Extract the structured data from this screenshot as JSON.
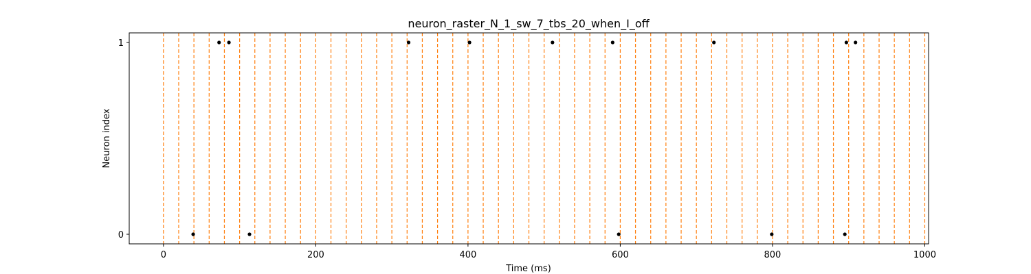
{
  "chart_data": {
    "type": "scatter",
    "title": "neuron_raster_N_1_sw_7_tbs_20_when_I_off",
    "xlabel": "Time (ms)",
    "ylabel": "Neuron index",
    "xlim": [
      -45,
      1005
    ],
    "ylim": [
      -0.05,
      1.05
    ],
    "xticks": [
      0,
      200,
      400,
      600,
      800,
      1000
    ],
    "yticks": [
      0,
      1
    ],
    "grid": false,
    "marker_color": "#000000",
    "vline_color": "#ff7f0e",
    "vlines": [
      0,
      20,
      40,
      60,
      80,
      100,
      120,
      140,
      160,
      180,
      200,
      220,
      240,
      260,
      280,
      300,
      320,
      340,
      360,
      380,
      400,
      420,
      440,
      460,
      480,
      500,
      520,
      540,
      560,
      580,
      600,
      620,
      640,
      660,
      680,
      700,
      720,
      740,
      760,
      780,
      800,
      820,
      840,
      860,
      880,
      900,
      920,
      940,
      960,
      980,
      1000
    ],
    "series": [
      {
        "neuron": 0,
        "times": [
          39,
          113,
          598,
          799,
          895
        ]
      },
      {
        "neuron": 1,
        "times": [
          73,
          86,
          322,
          402,
          511,
          590,
          723,
          897,
          909
        ]
      }
    ]
  }
}
